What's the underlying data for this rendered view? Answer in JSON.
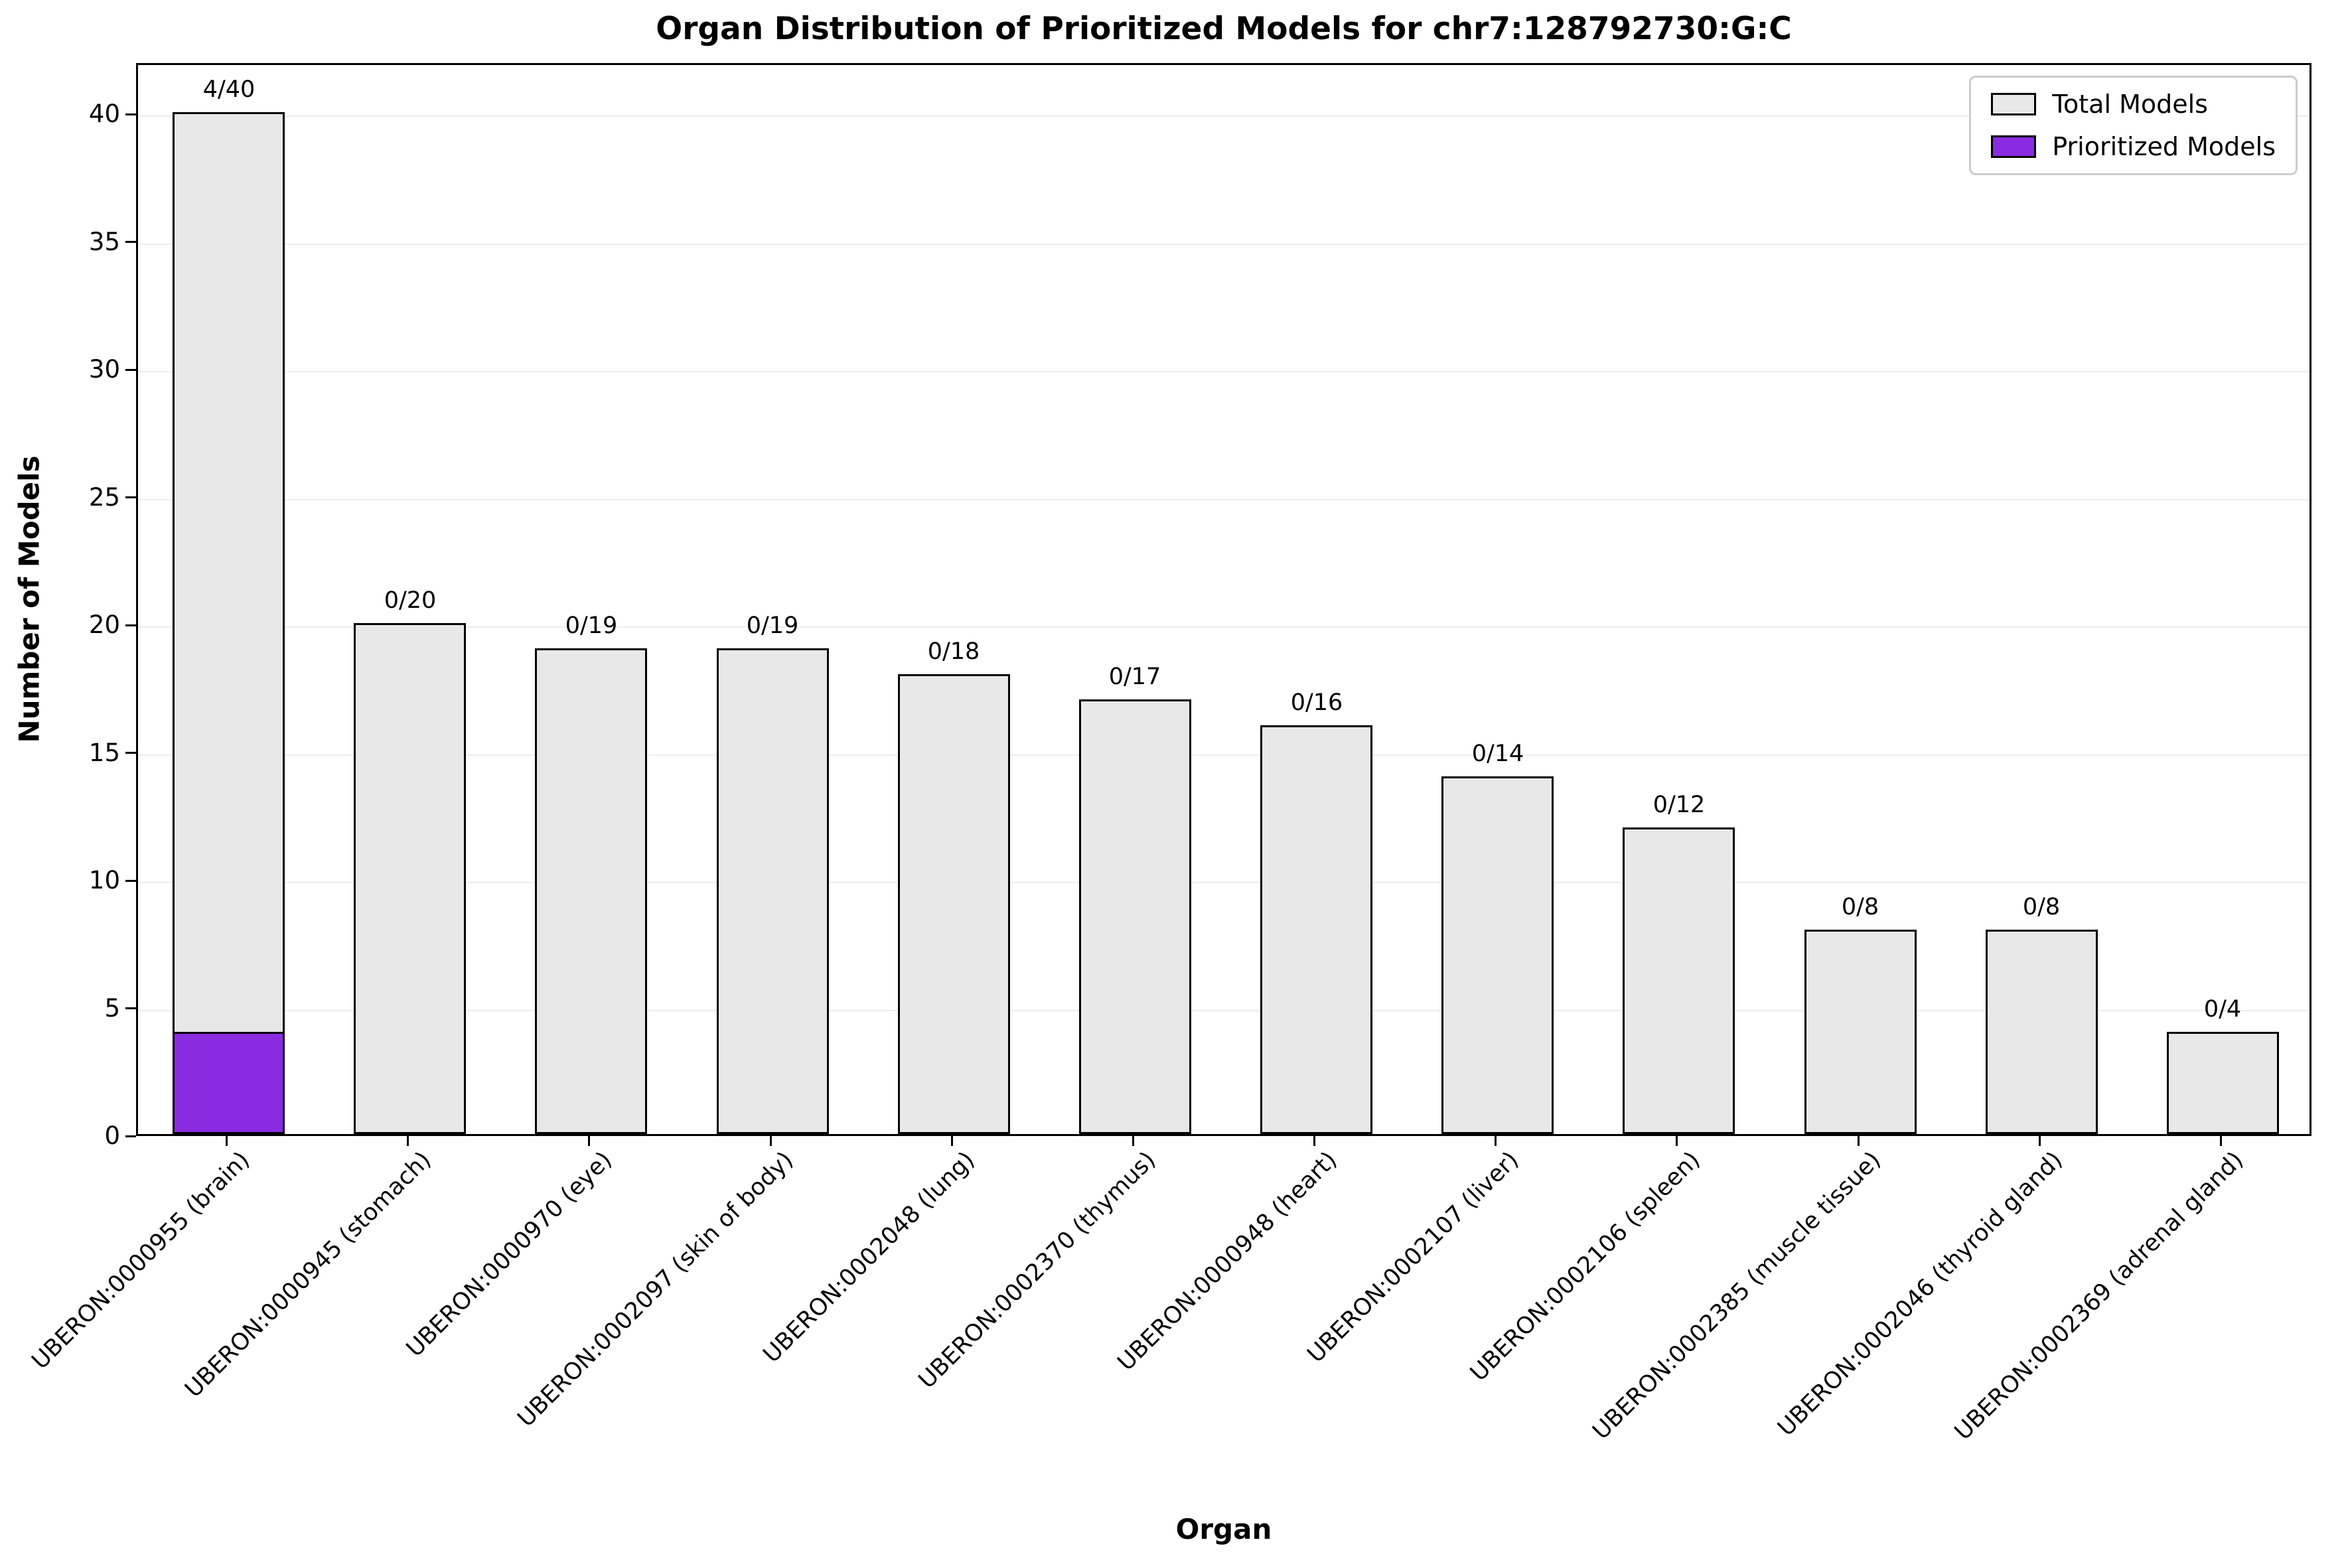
{
  "chart_data": {
    "type": "bar",
    "title": "Organ Distribution of Prioritized Models for chr7:128792730:G:C",
    "xlabel": "Organ",
    "ylabel": "Number of Models",
    "ylim": [
      0,
      42
    ],
    "yticks": [
      0,
      5,
      10,
      15,
      20,
      25,
      30,
      35,
      40
    ],
    "grid": true,
    "legend_position": "upper-right",
    "categories": [
      "UBERON:0000955 (brain)",
      "UBERON:0000945 (stomach)",
      "UBERON:0000970 (eye)",
      "UBERON:0002097 (skin of body)",
      "UBERON:0002048 (lung)",
      "UBERON:0002370 (thymus)",
      "UBERON:0000948 (heart)",
      "UBERON:0002107 (liver)",
      "UBERON:0002106 (spleen)",
      "UBERON:0002385 (muscle tissue)",
      "UBERON:0002046 (thyroid gland)",
      "UBERON:0002369 (adrenal gland)"
    ],
    "series": [
      {
        "name": "Total Models",
        "color": "#e8e8e8",
        "edge_color": "#000000",
        "values": [
          40,
          20,
          19,
          19,
          18,
          17,
          16,
          14,
          12,
          8,
          8,
          4
        ]
      },
      {
        "name": "Prioritized Models",
        "color": "#8a2be2",
        "edge_color": "#000000",
        "values": [
          4,
          0,
          0,
          0,
          0,
          0,
          0,
          0,
          0,
          0,
          0,
          0
        ]
      }
    ],
    "bar_labels": [
      "4/40",
      "0/20",
      "0/19",
      "0/19",
      "0/18",
      "0/17",
      "0/16",
      "0/14",
      "0/12",
      "0/8",
      "0/8",
      "0/4"
    ]
  }
}
